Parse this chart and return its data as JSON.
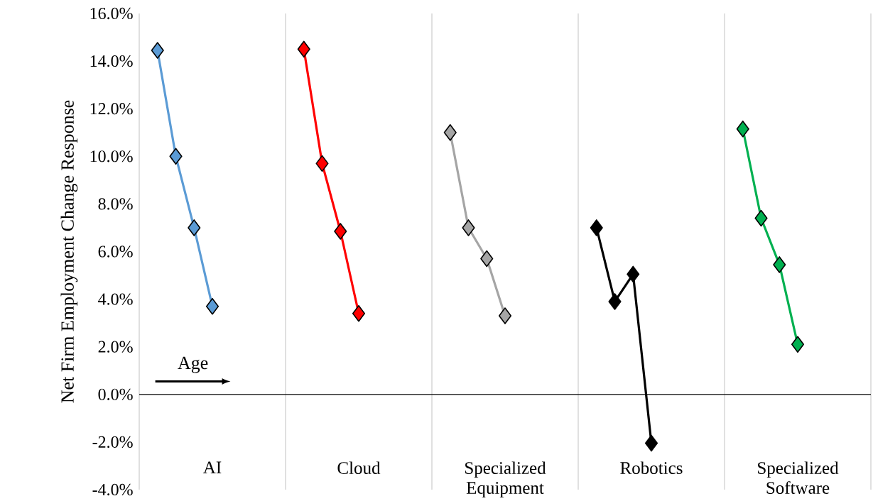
{
  "chart_data": {
    "type": "line",
    "ylabel": "Net Firm Employment Change Response",
    "categories": [
      null,
      null,
      null,
      "AI",
      null,
      null,
      null,
      null,
      null,
      null,
      null,
      "Cloud",
      null,
      null,
      null,
      null,
      null,
      null,
      null,
      "Specialized Equipment",
      null,
      null,
      null,
      null,
      null,
      null,
      null,
      "Robotics",
      null,
      null,
      null,
      null,
      null,
      null,
      null,
      "Specialized Software",
      null,
      null,
      null
    ],
    "ylim": [
      -4,
      16
    ],
    "yticks": [
      {
        "value": -4,
        "label": "-4.0%"
      },
      {
        "value": -2,
        "label": "-2.0%"
      },
      {
        "value": 0,
        "label": "0.0%"
      },
      {
        "value": 2,
        "label": "2.0%"
      },
      {
        "value": 4,
        "label": "4.0%"
      },
      {
        "value": 6,
        "label": "6.0%"
      },
      {
        "value": 8,
        "label": "8.0%"
      },
      {
        "value": 10,
        "label": "10.0%"
      },
      {
        "value": 12,
        "label": "12.0%"
      },
      {
        "value": 14,
        "label": "14.0%"
      },
      {
        "value": 16,
        "label": "16.0%"
      }
    ],
    "grid": "x",
    "marker": "diamond",
    "annotations": [
      "Age"
    ],
    "series": [
      {
        "color": "#5b9bd5",
        "values": [
          14.45,
          10.0,
          7.0,
          3.7,
          null,
          null,
          null,
          null,
          null,
          null,
          null,
          null,
          null,
          null,
          null,
          null,
          null,
          null,
          null,
          null,
          null,
          null,
          null,
          null,
          null,
          null,
          null,
          null,
          null,
          null,
          null,
          null,
          null,
          null,
          null,
          null,
          null,
          null,
          null
        ]
      },
      {
        "color": "#ff0000",
        "values": [
          null,
          null,
          null,
          null,
          null,
          null,
          null,
          null,
          14.5,
          9.7,
          6.85,
          3.4,
          null,
          null,
          null,
          null,
          null,
          null,
          null,
          null,
          null,
          null,
          null,
          null,
          null,
          null,
          null,
          null,
          null,
          null,
          null,
          null,
          null,
          null,
          null,
          null,
          null,
          null,
          null
        ]
      },
      {
        "color": "#a5a5a5",
        "values": [
          null,
          null,
          null,
          null,
          null,
          null,
          null,
          null,
          null,
          null,
          null,
          null,
          null,
          null,
          null,
          null,
          11.0,
          7.0,
          5.7,
          3.3,
          null,
          null,
          null,
          null,
          null,
          null,
          null,
          null,
          null,
          null,
          null,
          null,
          null,
          null,
          null,
          null,
          null,
          null,
          null
        ]
      },
      {
        "color": "#000000",
        "values": [
          null,
          null,
          null,
          null,
          null,
          null,
          null,
          null,
          null,
          null,
          null,
          null,
          null,
          null,
          null,
          null,
          null,
          null,
          null,
          null,
          null,
          null,
          null,
          null,
          7.0,
          3.9,
          5.05,
          -2.05,
          null,
          null,
          null,
          null,
          null,
          null,
          null,
          null,
          null,
          null,
          null
        ]
      },
      {
        "color": "#00b050",
        "values": [
          null,
          null,
          null,
          null,
          null,
          null,
          null,
          null,
          null,
          null,
          null,
          null,
          null,
          null,
          null,
          null,
          null,
          null,
          null,
          null,
          null,
          null,
          null,
          null,
          null,
          null,
          null,
          null,
          null,
          null,
          null,
          null,
          11.15,
          7.4,
          5.45,
          2.1,
          null,
          null,
          null
        ]
      }
    ]
  }
}
